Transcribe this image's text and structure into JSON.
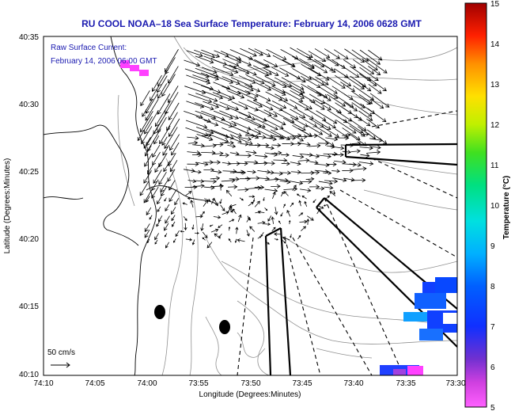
{
  "title": "RU COOL  NOAA–18  Sea Surface Temperature:  February 14, 2006 0628 GMT",
  "current_label_line1": "Raw Surface Current:",
  "current_label_line2": "February 14, 2006 06:00 GMT",
  "axes": {
    "xlabel": "Longitude (Degrees:Minutes)",
    "ylabel": "Latitude (Degrees:Minutes)",
    "x_ticks": [
      "74:10",
      "74:05",
      "74:00",
      "73:55",
      "73:50",
      "73:45",
      "73:40",
      "73:35",
      "73:30"
    ],
    "y_ticks": [
      "40:35",
      "40:30",
      "40:25",
      "40:20",
      "40:15",
      "40:10"
    ]
  },
  "scale": {
    "label": "50 cm/s"
  },
  "colorbar": {
    "label": "Temperature (°C)",
    "ticks": [
      "15",
      "14",
      "13",
      "12",
      "11",
      "10",
      "9",
      "8",
      "7",
      "6",
      "5"
    ],
    "min": 5,
    "max": 15
  },
  "colors": {
    "title": "#1a1ab0",
    "annotation": "#1a1ab0",
    "land_outline": "#000000",
    "bathymetry": "#909090",
    "vectors": "#000000"
  }
}
